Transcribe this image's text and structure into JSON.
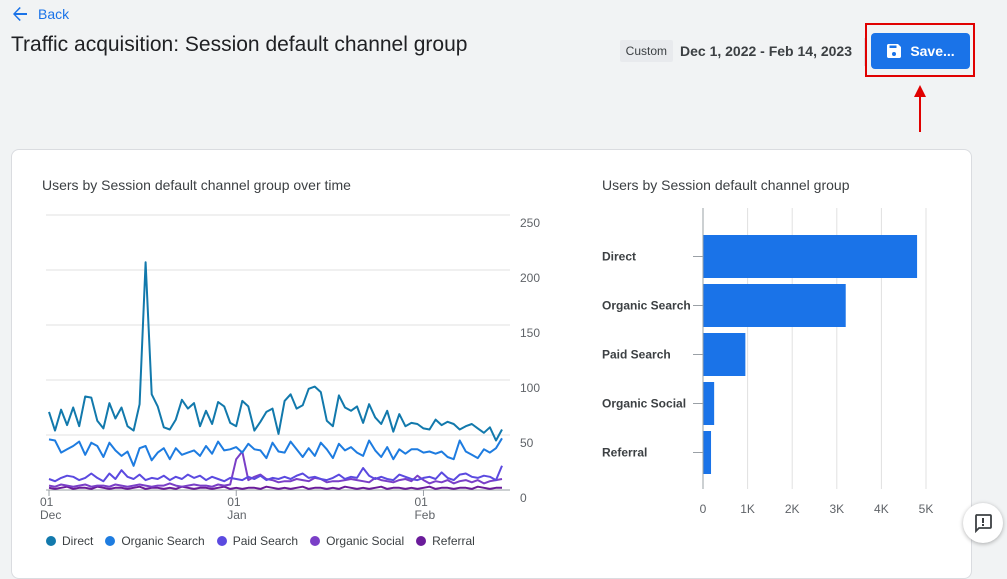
{
  "nav": {
    "back_label": "Back"
  },
  "header": {
    "title": "Traffic acquisition: Session default channel group",
    "date_chip": "Custom",
    "date_range": "Dec 1, 2022 - Feb 14, 2023",
    "save_label": "Save..."
  },
  "colors": {
    "accent": "#1a73e8",
    "highlight": "#e00000",
    "Direct": "#1279ac",
    "Organic Search": "#1e7ce0",
    "Paid Search": "#5b4ae0",
    "Organic Social": "#7a3fc7",
    "Referral": "#6a1b9a"
  },
  "chart_data": [
    {
      "type": "line",
      "title": "Users by Session default channel group over time",
      "x_ticks": [
        {
          "day": "01",
          "month": "Dec"
        },
        {
          "day": "01",
          "month": "Jan"
        },
        {
          "day": "01",
          "month": "Feb"
        }
      ],
      "y_ticks": [
        "250",
        "200",
        "150",
        "100",
        "50",
        "0"
      ],
      "ylim": [
        0,
        250
      ],
      "grid": true,
      "legend": "bottom",
      "series": [
        {
          "name": "Direct",
          "values": [
            71,
            54,
            73,
            59,
            75,
            58,
            85,
            84,
            63,
            56,
            79,
            65,
            75,
            58,
            54,
            78,
            207,
            87,
            76,
            57,
            55,
            64,
            82,
            74,
            79,
            58,
            72,
            60,
            80,
            76,
            61,
            58,
            81,
            76,
            54,
            62,
            71,
            74,
            51,
            81,
            87,
            74,
            77,
            92,
            94,
            89,
            63,
            58,
            86,
            75,
            72,
            76,
            61,
            78,
            66,
            60,
            72,
            53,
            69,
            58,
            61,
            60,
            56,
            55,
            64,
            59,
            62,
            60,
            55,
            58,
            60,
            56,
            52,
            57,
            45,
            55
          ]
        },
        {
          "name": "Organic Search",
          "values": [
            46,
            45,
            34,
            37,
            40,
            44,
            32,
            43,
            40,
            30,
            43,
            36,
            31,
            35,
            22,
            38,
            40,
            27,
            34,
            38,
            28,
            38,
            32,
            34,
            36,
            31,
            40,
            33,
            44,
            36,
            37,
            39,
            34,
            42,
            37,
            36,
            29,
            43,
            35,
            34,
            44,
            37,
            30,
            38,
            31,
            43,
            37,
            29,
            42,
            36,
            39,
            34,
            31,
            45,
            36,
            30,
            39,
            28,
            37,
            33,
            37,
            37,
            34,
            35,
            33,
            35,
            30,
            28,
            45,
            35,
            32,
            29,
            37,
            34,
            38,
            47
          ]
        },
        {
          "name": "Paid Search",
          "values": [
            10,
            8,
            11,
            13,
            12,
            9,
            11,
            15,
            11,
            8,
            15,
            10,
            18,
            12,
            10,
            14,
            9,
            11,
            10,
            13,
            9,
            12,
            10,
            14,
            11,
            13,
            9,
            12,
            10,
            8,
            11,
            10,
            9,
            12,
            10,
            13,
            9,
            11,
            10,
            12,
            10,
            13,
            15,
            11,
            12,
            10,
            9,
            11,
            14,
            10,
            12,
            11,
            20,
            13,
            10,
            12,
            10,
            9,
            14,
            12,
            10,
            9,
            11,
            12,
            10,
            16,
            11,
            9,
            14,
            15,
            12,
            11,
            13,
            12,
            9,
            22
          ]
        },
        {
          "name": "Organic Social",
          "values": [
            4,
            3,
            5,
            4,
            3,
            4,
            5,
            3,
            4,
            4,
            3,
            5,
            4,
            3,
            4,
            5,
            4,
            3,
            4,
            4,
            6,
            4,
            3,
            4,
            5,
            4,
            4,
            3,
            5,
            4,
            5,
            28,
            35,
            9,
            12,
            14,
            10,
            9,
            7,
            8,
            8,
            10,
            9,
            8,
            11,
            10,
            7,
            8,
            8,
            9,
            10,
            9,
            8,
            7,
            11,
            9,
            8,
            7,
            9,
            10,
            8,
            13,
            9,
            6,
            8,
            7,
            9,
            6,
            8,
            9,
            7,
            9,
            6,
            8,
            9,
            10
          ]
        },
        {
          "name": "Referral",
          "values": [
            2,
            1,
            2,
            3,
            1,
            2,
            2,
            1,
            3,
            2,
            1,
            2,
            2,
            1,
            2,
            3,
            1,
            2,
            2,
            1,
            2,
            1,
            3,
            2,
            1,
            2,
            2,
            1,
            2,
            3,
            1,
            2,
            1,
            2,
            2,
            1,
            3,
            2,
            1,
            2,
            1,
            2,
            3,
            1,
            2,
            2,
            1,
            2,
            1,
            3,
            2,
            1,
            2,
            1,
            2,
            3,
            1,
            2,
            2,
            1,
            2,
            1,
            2,
            3,
            1,
            2,
            2,
            1,
            2,
            2,
            1,
            3,
            2,
            1,
            2,
            2
          ]
        }
      ]
    },
    {
      "type": "bar",
      "orientation": "horizontal",
      "title": "Users by Session default channel group",
      "categories": [
        "Direct",
        "Organic Search",
        "Paid Search",
        "Organic Social",
        "Referral"
      ],
      "values": [
        4800,
        3200,
        950,
        250,
        180
      ],
      "x_ticks": [
        "0",
        "1K",
        "2K",
        "3K",
        "4K",
        "5K"
      ],
      "xlim": [
        0,
        5000
      ],
      "grid": true
    }
  ]
}
